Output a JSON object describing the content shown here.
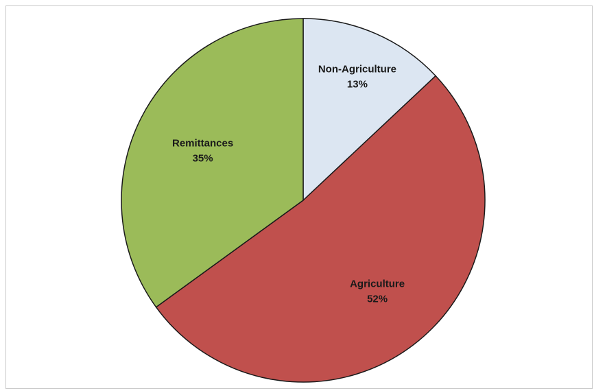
{
  "chart_data": {
    "type": "pie",
    "title": "",
    "slices": [
      {
        "name": "Non-Agriculture",
        "value": 13,
        "percent_label": "13%",
        "color": "#dce6f2"
      },
      {
        "name": "Agriculture",
        "value": 52,
        "percent_label": "52%",
        "color": "#c0504d"
      },
      {
        "name": "Remittances",
        "value": 35,
        "percent_label": "35%",
        "color": "#9bbb59"
      }
    ],
    "start_angle": "12 o'clock",
    "direction": "clockwise",
    "legend": "none",
    "labels_inside": true,
    "slice_border_color": "#1a1a1a"
  }
}
